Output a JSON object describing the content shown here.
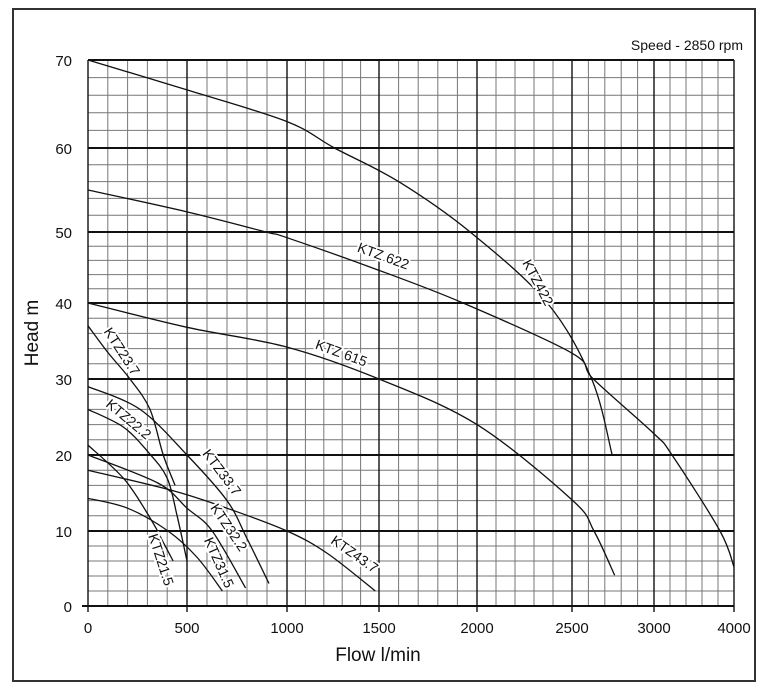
{
  "chart_data": {
    "type": "line",
    "title": "",
    "annotation": "Speed - 2850 rpm",
    "xlabel": "Flow l/min",
    "ylabel": "Head m",
    "xlim": [
      0,
      4000
    ],
    "ylim": [
      0,
      70
    ],
    "x_ticks": [
      0,
      500,
      1000,
      1500,
      2000,
      2500,
      3000,
      4000
    ],
    "y_ticks": [
      0,
      10,
      20,
      30,
      40,
      50,
      60,
      70
    ],
    "grid": true,
    "legend": "none (curves labeled inline)",
    "series": [
      {
        "name": "KTZ422",
        "points": [
          [
            0,
            70
          ],
          [
            500,
            66.6
          ],
          [
            1000,
            63
          ],
          [
            1258,
            60
          ],
          [
            1600,
            56
          ],
          [
            1965,
            50
          ],
          [
            2370,
            40
          ],
          [
            2620,
            30
          ],
          [
            2745,
            20
          ]
        ]
      },
      {
        "name": "KTZ 622",
        "points": [
          [
            0,
            55
          ],
          [
            500,
            52.4
          ],
          [
            895,
            50
          ],
          [
            1000,
            49.2
          ],
          [
            1500,
            44.6
          ],
          [
            1929,
            40
          ],
          [
            2500,
            33.4
          ],
          [
            2630,
            30
          ],
          [
            3000,
            22.8
          ],
          [
            3225,
            20
          ],
          [
            3825,
            10
          ],
          [
            4000,
            5.2
          ]
        ]
      },
      {
        "name": "KTZ 615",
        "points": [
          [
            0,
            40
          ],
          [
            500,
            36.8
          ],
          [
            1000,
            34.2
          ],
          [
            1500,
            30
          ],
          [
            2000,
            24
          ],
          [
            2500,
            14.1
          ],
          [
            2634,
            10
          ],
          [
            2760,
            4.1
          ]
        ]
      },
      {
        "name": "KTZ23.7",
        "points": [
          [
            0,
            37
          ],
          [
            100,
            33.5
          ],
          [
            212,
            30
          ],
          [
            313,
            26
          ],
          [
            380,
            20
          ],
          [
            440,
            16
          ]
        ]
      },
      {
        "name": "KTZ22.2",
        "points": [
          [
            0,
            26
          ],
          [
            177,
            23.7
          ],
          [
            300,
            20.5
          ],
          [
            399,
            17
          ],
          [
            450,
            12
          ],
          [
            500,
            6
          ]
        ]
      },
      {
        "name": "KTZ33.7",
        "points": [
          [
            0,
            29
          ],
          [
            263,
            26
          ],
          [
            500,
            20
          ],
          [
            700,
            14
          ],
          [
            800,
            9
          ],
          [
            910,
            3
          ]
        ]
      },
      {
        "name": "KTZ32.2",
        "points": [
          [
            0,
            20
          ],
          [
            354,
            16.3
          ],
          [
            500,
            13
          ],
          [
            626,
            10
          ],
          [
            793,
            2.4
          ]
        ]
      },
      {
        "name": "KTZ31.5",
        "points": [
          [
            0,
            14.3
          ],
          [
            200,
            13
          ],
          [
            404,
            10
          ],
          [
            550,
            6.5
          ],
          [
            677,
            2
          ]
        ]
      },
      {
        "name": "KTZ21.5",
        "points": [
          [
            0,
            21.3
          ],
          [
            187,
            16.7
          ],
          [
            323,
            11.3
          ],
          [
            380,
            8.5
          ],
          [
            430,
            6
          ]
        ]
      },
      {
        "name": "KTZ43.7",
        "points": [
          [
            0,
            18
          ],
          [
            430,
            15.3
          ],
          [
            700,
            13
          ],
          [
            1000,
            10
          ],
          [
            1220,
            7
          ],
          [
            1480,
            2
          ]
        ]
      }
    ]
  }
}
